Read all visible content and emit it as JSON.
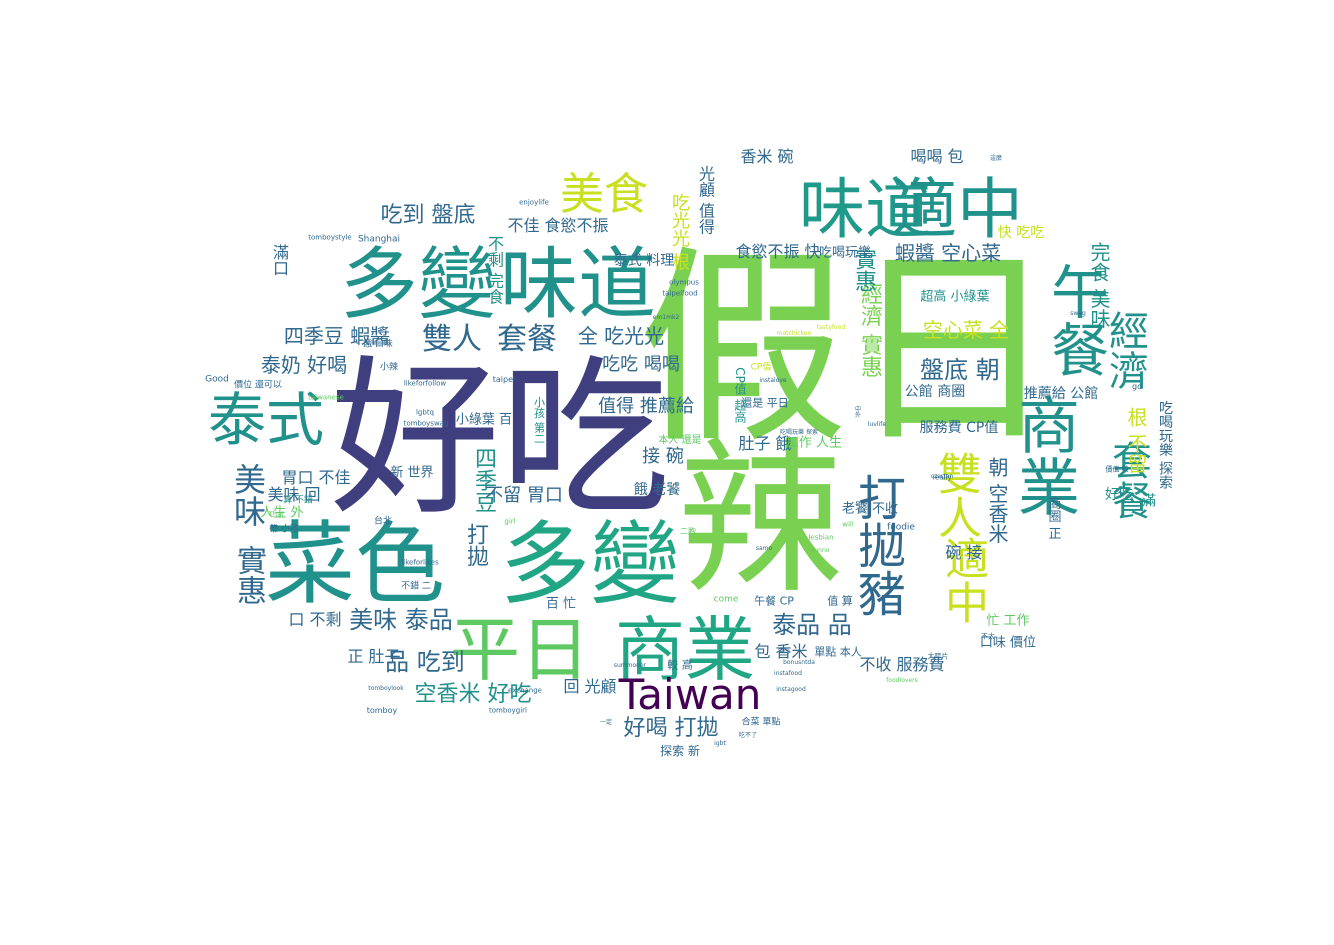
{
  "palette": {
    "dark_purple": "#3f3f7f",
    "deep_purple": "#440154",
    "teal": "#21918c",
    "blue": "#31688e",
    "green": "#5ec962",
    "yellow": "#fde725",
    "bright_green": "#7ad151"
  },
  "words": [
    {
      "text": "假日",
      "c": "#7ad151"
    },
    {
      "text": "好吃",
      "c": "#3f3f7f"
    },
    {
      "text": "辣",
      "c": "#7ad151"
    },
    {
      "text": "菜色",
      "c": "#21918c"
    },
    {
      "text": "多變",
      "c": "#21a685"
    },
    {
      "text": "多變",
      "c": "#21918c"
    },
    {
      "text": "味道",
      "c": "#21918c"
    },
    {
      "text": "味道",
      "c": "#1f9a8a"
    },
    {
      "text": "適中",
      "c": "#21918c"
    },
    {
      "text": "平日",
      "c": "#5ec962"
    },
    {
      "text": "商業",
      "c": "#21a685"
    },
    {
      "text": "Taiwan",
      "c": "#440154"
    },
    {
      "text": "泰式",
      "c": "#21918c"
    },
    {
      "text": "美食",
      "c": "#c8e020"
    },
    {
      "text": "商業",
      "c": "#21918c"
    },
    {
      "text": "午餐",
      "c": "#21918c"
    },
    {
      "text": "打拋豬",
      "c": "#31688e"
    },
    {
      "text": "雙人",
      "c": "#c8e020"
    },
    {
      "text": "適中",
      "c": "#c8e020"
    },
    {
      "text": "套餐",
      "c": "#21918c"
    },
    {
      "text": "經濟",
      "c": "#21918c"
    },
    {
      "text": "套餐",
      "c": "#31688e"
    },
    {
      "text": "雙人",
      "c": "#31688e"
    },
    {
      "text": "美味",
      "c": "#31688e"
    },
    {
      "text": "實惠",
      "c": "#31688e"
    },
    {
      "text": "美味 泰品",
      "c": "#31688e"
    },
    {
      "text": "泰品 品",
      "c": "#31688e"
    },
    {
      "text": "品 吃到",
      "c": "#31688e"
    },
    {
      "text": "空香米 好吃",
      "c": "#21918c"
    },
    {
      "text": "好喝 打拋",
      "c": "#31688e"
    },
    {
      "text": "吃到 盤底",
      "c": "#31688e"
    },
    {
      "text": "泰奶 好喝",
      "c": "#31688e"
    },
    {
      "text": "四季豆 蝦醬",
      "c": "#31688e"
    },
    {
      "text": "經濟 實惠",
      "c": "#7ad151"
    },
    {
      "text": "盤底 朝",
      "c": "#31688e"
    },
    {
      "text": "空心菜 全",
      "c": "#c8e020"
    },
    {
      "text": "蝦醬 空心菜",
      "c": "#31688e"
    },
    {
      "text": "實惠",
      "c": "#21918c"
    },
    {
      "text": "朝 空香米",
      "c": "#31688e"
    },
    {
      "text": "根 不留",
      "c": "#c8e020"
    },
    {
      "text": "完食 美味",
      "c": "#21918c"
    },
    {
      "text": "全 吃光光",
      "c": "#31688e"
    },
    {
      "text": "吃吃 喝喝",
      "c": "#31688e"
    },
    {
      "text": "值得 推薦給",
      "c": "#31688e"
    },
    {
      "text": "四季豆",
      "c": "#21918c"
    },
    {
      "text": "打拋",
      "c": "#31688e"
    },
    {
      "text": "接 碗",
      "c": "#31688e"
    },
    {
      "text": "不佳 食慾不振",
      "c": "#31688e"
    },
    {
      "text": "吃光光 根",
      "c": "#c8e020"
    },
    {
      "text": "光顧 值得",
      "c": "#31688e"
    },
    {
      "text": "香米 碗",
      "c": "#31688e"
    },
    {
      "text": "喝喝 包",
      "c": "#31688e"
    },
    {
      "text": "快 吃吃",
      "c": "#c8e020"
    },
    {
      "text": "食慾不振 快",
      "c": "#31688e"
    },
    {
      "text": "口 不剩",
      "c": "#31688e"
    },
    {
      "text": "胃口 不佳",
      "c": "#31688e"
    },
    {
      "text": "美味 回",
      "c": "#31688e"
    },
    {
      "text": "滿口",
      "c": "#31688e"
    },
    {
      "text": "不剩 完食",
      "c": "#21918c"
    },
    {
      "text": "不留 胃口",
      "c": "#31688e"
    },
    {
      "text": "回 光顧",
      "c": "#31688e"
    },
    {
      "text": "包 香米",
      "c": "#31688e"
    },
    {
      "text": "正 肚子",
      "c": "#31688e"
    },
    {
      "text": "肚子 餓",
      "c": "#31688e"
    },
    {
      "text": "餓 老饕",
      "c": "#31688e"
    },
    {
      "text": "碗 接",
      "c": "#31688e"
    },
    {
      "text": "商圈 正",
      "c": "#31688e"
    },
    {
      "text": "好吃",
      "c": "#21918c"
    },
    {
      "text": "滿",
      "c": "#21918c"
    },
    {
      "text": "不收 服務費",
      "c": "#31688e"
    },
    {
      "text": "公館 商圈",
      "c": "#31688e"
    },
    {
      "text": "推薦給 公館",
      "c": "#31688e"
    },
    {
      "text": "服務費 CP值",
      "c": "#31688e"
    },
    {
      "text": "吃喝玩樂 探索",
      "c": "#31688e"
    },
    {
      "text": "超高 小綠葉",
      "c": "#21918c"
    },
    {
      "text": "小綠葉 百",
      "c": "#31688e"
    },
    {
      "text": "新 世界",
      "c": "#31688e"
    },
    {
      "text": "泰式 料理",
      "c": "#31688e"
    },
    {
      "text": "吃喝玩樂",
      "c": "#31688e"
    },
    {
      "text": "人生 外",
      "c": "#5ec962"
    },
    {
      "text": "工作 人生",
      "c": "#5ec962"
    },
    {
      "text": "忙 工作",
      "c": "#5ec962"
    },
    {
      "text": "口味 價位",
      "c": "#31688e"
    },
    {
      "text": "老饕 不收",
      "c": "#31688e"
    },
    {
      "text": "本人 還是",
      "c": "#5ec962"
    },
    {
      "text": "還是 平日",
      "c": "#31688e"
    },
    {
      "text": "CP值 超高",
      "c": "#21918c"
    },
    {
      "text": "小孩 第二",
      "c": "#21918c"
    },
    {
      "text": "百 忙",
      "c": "#31688e"
    },
    {
      "text": "午餐 CP",
      "c": "#31688e"
    },
    {
      "text": "值 算",
      "c": "#31688e"
    },
    {
      "text": "單點 本人",
      "c": "#31688e"
    },
    {
      "text": "較 高",
      "c": "#31688e"
    },
    {
      "text": "探索 新",
      "c": "#31688e"
    },
    {
      "text": "Shanghai",
      "c": "#31688e"
    },
    {
      "text": "enjoylife",
      "c": "#31688e"
    },
    {
      "text": "tomboystyle",
      "c": "#31688e"
    },
    {
      "text": "olympus",
      "c": "#31688e"
    },
    {
      "text": "taipeifood",
      "c": "#31688e"
    },
    {
      "text": "Good",
      "c": "#31688e"
    },
    {
      "text": "價位 還可以",
      "c": "#31688e"
    },
    {
      "text": "餓 口味",
      "c": "#31688e"
    },
    {
      "text": "小辣",
      "c": "#31688e"
    },
    {
      "text": "lgbtq",
      "c": "#31688e"
    },
    {
      "text": "tomboyswag",
      "c": "#31688e"
    },
    {
      "text": "taipei",
      "c": "#31688e"
    },
    {
      "text": "taiwanese",
      "c": "#5ec962"
    },
    {
      "text": "likeforfollow",
      "c": "#31688e"
    },
    {
      "text": "算 不錯",
      "c": "#21918c"
    },
    {
      "text": "帶 小孩",
      "c": "#31688e"
    },
    {
      "text": "Thai",
      "c": "#5ec962"
    },
    {
      "text": "台北",
      "c": "#31688e"
    },
    {
      "text": "lesbian",
      "c": "#5ec962"
    },
    {
      "text": "girl",
      "c": "#5ec962"
    },
    {
      "text": "likeforlikes",
      "c": "#31688e"
    },
    {
      "text": "不錯 二",
      "c": "#31688e"
    },
    {
      "text": "exchange",
      "c": "#31688e"
    },
    {
      "text": "tomboylook",
      "c": "#31688e"
    },
    {
      "text": "tomboy",
      "c": "#31688e"
    },
    {
      "text": "tomboygirl",
      "c": "#31688e"
    },
    {
      "text": "come",
      "c": "#5ec962"
    },
    {
      "text": "instagood",
      "c": "#31688e"
    },
    {
      "text": "instafood",
      "c": "#31688e"
    },
    {
      "text": "bonusntda",
      "c": "#31688e"
    },
    {
      "text": "foodie",
      "c": "#31688e"
    },
    {
      "text": "really",
      "c": "#31688e"
    },
    {
      "text": "will",
      "c": "#5ec962"
    },
    {
      "text": "價值 較",
      "c": "#31688e"
    },
    {
      "text": "go",
      "c": "#31688e"
    },
    {
      "text": "大陸片",
      "c": "#31688e"
    },
    {
      "text": "不太",
      "c": "#31688e"
    },
    {
      "text": "吃喝玩樂 探索",
      "c": "#31688e"
    },
    {
      "text": "合菜 單點",
      "c": "#31688e"
    },
    {
      "text": "igbt",
      "c": "#31688e"
    },
    {
      "text": "一定",
      "c": "#31688e"
    },
    {
      "text": "吃不了",
      "c": "#31688e"
    },
    {
      "text": "雲南",
      "c": "#31688e"
    },
    {
      "text": "CP值",
      "c": "#c8e020"
    },
    {
      "text": "二胞",
      "c": "#5ec962"
    },
    {
      "text": "czartan",
      "c": "#31688e"
    },
    {
      "text": "luvlife",
      "c": "#31688e"
    },
    {
      "text": "swag",
      "c": "#31688e"
    },
    {
      "text": "matchicken",
      "c": "#c8e020"
    },
    {
      "text": "em1mk2",
      "c": "#31688e"
    },
    {
      "text": "instalove",
      "c": "#31688e"
    },
    {
      "text": "foodlovers",
      "c": "#5ec962"
    },
    {
      "text": "tastyfood",
      "c": "#c8e020"
    },
    {
      "text": "samo",
      "c": "#31688e"
    },
    {
      "text": "dunno",
      "c": "#5ec962"
    },
    {
      "text": "summoner",
      "c": "#31688e"
    },
    {
      "text": "這麼",
      "c": "#31688e"
    },
    {
      "text": "中",
      "c": "#31688e"
    },
    {
      "text": "外",
      "c": "#31688e"
    }
  ]
}
